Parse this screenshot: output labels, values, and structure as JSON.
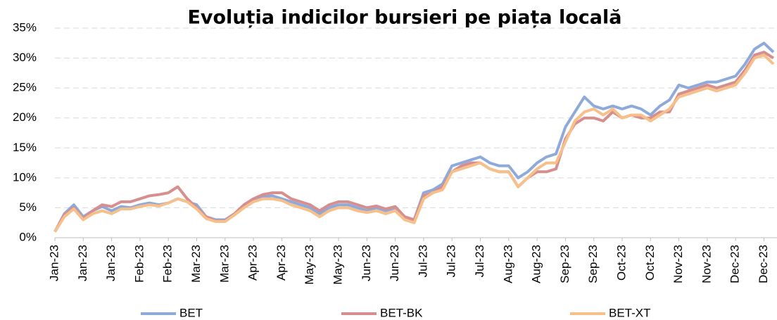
{
  "chart_data": {
    "type": "line",
    "title": "Evoluția indicilor bursieri pe piața locală",
    "categories": [
      "Jan-23",
      null,
      null,
      "Jan-23",
      null,
      null,
      "Jan-23",
      null,
      null,
      "Feb-23",
      null,
      null,
      "Feb-23",
      null,
      null,
      "Mar-23",
      null,
      null,
      "Mar-23",
      null,
      null,
      "Apr-23",
      null,
      null,
      "Apr-23",
      null,
      null,
      "May-23",
      null,
      null,
      "May-23",
      null,
      null,
      "Jun-23",
      null,
      null,
      "Jun-23",
      null,
      null,
      "Jul-23",
      null,
      null,
      "Jul-23",
      null,
      null,
      "Jul-23",
      null,
      null,
      "Aug-23",
      null,
      null,
      "Aug-23",
      null,
      null,
      "Sep-23",
      null,
      null,
      "Sep-23",
      null,
      null,
      "Oct-23",
      null,
      null,
      "Oct-23",
      null,
      null,
      "Nov-23",
      null,
      null,
      "Nov-23",
      null,
      null,
      "Dec-23",
      null,
      null,
      "Dec-23",
      null
    ],
    "series": [
      {
        "name": "BET",
        "color": "#8eaadb",
        "values": [
          1,
          4,
          5.5,
          3.5,
          4.5,
          5.2,
          4.5,
          5.2,
          5,
          5.5,
          5.8,
          5.5,
          5.8,
          6.5,
          6,
          5.5,
          3.5,
          3,
          3,
          4,
          5.5,
          6.5,
          6.8,
          7,
          6.5,
          6,
          5.5,
          5,
          4,
          5,
          5.5,
          5.5,
          5,
          4.5,
          5,
          4.5,
          5,
          3.5,
          3,
          7.5,
          8,
          9,
          12,
          12.5,
          13,
          13.5,
          12.5,
          12,
          12,
          10,
          11,
          12.5,
          13.5,
          14,
          18.5,
          21,
          23.5,
          22,
          21.5,
          22,
          21.5,
          22,
          21.5,
          20.5,
          22,
          23,
          25.5,
          25,
          25.5,
          26,
          26,
          26.5,
          27,
          29,
          31.5,
          32.5,
          31
        ]
      },
      {
        "name": "BET-BK",
        "color": "#d68f8e",
        "values": [
          1,
          3.8,
          5,
          3.2,
          4.5,
          5.5,
          5.2,
          6,
          6,
          6.5,
          7,
          7.2,
          7.5,
          8.5,
          6.5,
          5,
          3.5,
          2.8,
          2.8,
          4,
          5.5,
          6.5,
          7.2,
          7.5,
          7.5,
          6.5,
          6,
          5.5,
          4.5,
          5.5,
          6,
          6,
          5.5,
          5,
          5.3,
          4.8,
          5.2,
          3.5,
          3,
          7,
          7.5,
          8.5,
          11,
          12,
          12.5,
          12.5,
          11.5,
          11,
          11,
          8.5,
          10,
          11,
          11,
          11.5,
          16.5,
          19,
          20,
          20,
          19.5,
          21,
          20,
          20.5,
          20,
          20,
          21,
          21,
          24,
          24.5,
          25,
          25.5,
          25,
          25.5,
          26,
          28,
          30.5,
          31,
          30
        ]
      },
      {
        "name": "BET-XT",
        "color": "#f7bf8a",
        "values": [
          1,
          3.5,
          4.8,
          3,
          4,
          4.5,
          4,
          4.8,
          4.8,
          5.2,
          5.5,
          5.3,
          5.8,
          6.5,
          6,
          4.8,
          3.2,
          2.7,
          2.7,
          3.8,
          5,
          6,
          6.5,
          6.5,
          6.2,
          5.5,
          5,
          4.5,
          3.5,
          4.5,
          5,
          5,
          4.5,
          4.2,
          4.5,
          4,
          4.5,
          3,
          2.5,
          6.5,
          7.5,
          8,
          11,
          11.5,
          12,
          12.5,
          11.5,
          11,
          11,
          8.5,
          10,
          11.5,
          12.5,
          12.5,
          16,
          19.5,
          21,
          21.5,
          20.5,
          21.5,
          20,
          20.5,
          20.5,
          19.5,
          20.5,
          21.5,
          23.5,
          24,
          24.5,
          25,
          24.5,
          25,
          25.5,
          27.5,
          30,
          30.5,
          29
        ]
      }
    ],
    "ylim": [
      0,
      35
    ],
    "yticks": [
      {
        "value": 0,
        "label": "0%"
      },
      {
        "value": 5,
        "label": "5%"
      },
      {
        "value": 10,
        "label": "10%"
      },
      {
        "value": 15,
        "label": "15%"
      },
      {
        "value": 20,
        "label": "20%"
      },
      {
        "value": 25,
        "label": "25%"
      },
      {
        "value": 30,
        "label": "30%"
      },
      {
        "value": 35,
        "label": "35%"
      }
    ],
    "grid": true,
    "legend": "bottom"
  }
}
